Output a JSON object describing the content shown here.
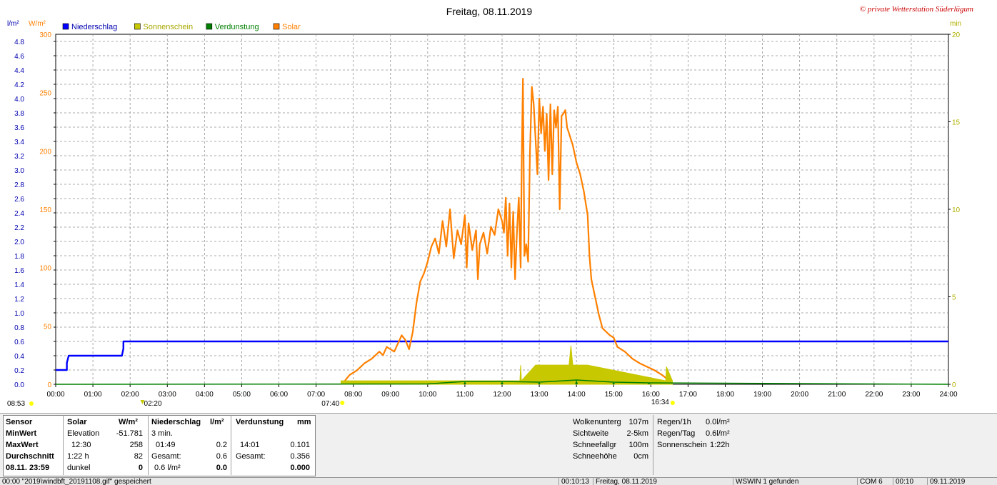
{
  "title": "Freitag, 08.11.2019",
  "copyright": "© private Wetterstation Süderlügum",
  "axes": {
    "left_unit_rain": "l/m²",
    "left_unit_solar": "W/m²",
    "right_unit": "min",
    "rain_ticks": [
      "0.0",
      "0.2",
      "0.4",
      "0.6",
      "0.8",
      "1.0",
      "1.2",
      "1.4",
      "1.6",
      "1.8",
      "2.0",
      "2.2",
      "2.4",
      "2.6",
      "2.8",
      "3.0",
      "3.2",
      "3.4",
      "3.6",
      "3.8",
      "4.0",
      "4.2",
      "4.4",
      "4.6",
      "4.8"
    ],
    "solar_ticks": [
      "0",
      "50",
      "100",
      "150",
      "200",
      "250",
      "300"
    ],
    "min_ticks": [
      "0",
      "5",
      "10",
      "15",
      "20"
    ],
    "time_ticks": [
      "00:00",
      "01:00",
      "02:00",
      "03:00",
      "04:00",
      "05:00",
      "06:00",
      "07:00",
      "08:00",
      "09:00",
      "10:00",
      "11:00",
      "12:00",
      "13:00",
      "14:00",
      "15:00",
      "16:00",
      "17:00",
      "18:00",
      "19:00",
      "20:00",
      "21:00",
      "22:00",
      "23:00",
      "24:00"
    ]
  },
  "markers": {
    "sunrise": "07:40",
    "sunset": "16:34",
    "daylength": "08:53",
    "moon": "02:20"
  },
  "legend": [
    {
      "label": "Niederschlag",
      "color": "#0000ff"
    },
    {
      "label": "Sonnenschein",
      "color": "#c8c800"
    },
    {
      "label": "Verdunstung",
      "color": "#008000"
    },
    {
      "label": "Solar",
      "color": "#ff8000"
    }
  ],
  "chart_data": {
    "type": "line",
    "title": "Freitag, 08.11.2019",
    "x_unit": "hours",
    "xlim": [
      0,
      24
    ],
    "series": [
      {
        "name": "Niederschlag",
        "axis": "l/m²",
        "ylim": [
          0,
          4.9
        ],
        "color": "#0000ff",
        "x": [
          0,
          0.3,
          0.3,
          0.35,
          1.78,
          1.82,
          1.82,
          24
        ],
        "y": [
          0.2,
          0.2,
          0.3,
          0.4,
          0.4,
          0.5,
          0.6,
          0.6
        ]
      },
      {
        "name": "Solar",
        "axis": "W/m²",
        "ylim": [
          0,
          300
        ],
        "color": "#ff8000",
        "x": [
          7.75,
          7.9,
          8.1,
          8.3,
          8.5,
          8.7,
          8.8,
          8.9,
          9.0,
          9.1,
          9.2,
          9.3,
          9.4,
          9.5,
          9.6,
          9.7,
          9.8,
          9.9,
          10.0,
          10.1,
          10.2,
          10.3,
          10.4,
          10.5,
          10.6,
          10.7,
          10.8,
          10.9,
          11.0,
          11.05,
          11.1,
          11.2,
          11.3,
          11.35,
          11.4,
          11.5,
          11.6,
          11.7,
          11.8,
          11.9,
          12.0,
          12.05,
          12.1,
          12.15,
          12.2,
          12.25,
          12.3,
          12.35,
          12.4,
          12.45,
          12.5,
          12.53,
          12.56,
          12.6,
          12.65,
          12.7,
          12.75,
          12.8,
          12.85,
          12.9,
          12.95,
          13.0,
          13.05,
          13.1,
          13.15,
          13.2,
          13.25,
          13.3,
          13.35,
          13.4,
          13.45,
          13.5,
          13.55,
          13.6,
          13.65,
          13.7,
          13.75,
          13.8,
          13.9,
          14.0,
          14.1,
          14.2,
          14.3,
          14.35,
          14.4,
          14.5,
          14.6,
          14.7,
          14.8,
          14.9,
          15.0,
          15.1,
          15.3,
          15.5,
          15.7,
          15.9,
          16.1,
          16.3,
          16.5,
          16.58
        ],
        "y": [
          2,
          8,
          12,
          18,
          22,
          28,
          25,
          32,
          30,
          28,
          35,
          42,
          38,
          30,
          45,
          70,
          88,
          95,
          105,
          118,
          125,
          112,
          140,
          118,
          150,
          108,
          132,
          120,
          145,
          100,
          138,
          115,
          132,
          90,
          120,
          130,
          112,
          135,
          128,
          150,
          140,
          130,
          160,
          110,
          155,
          100,
          148,
          90,
          130,
          160,
          100,
          195,
          262,
          110,
          120,
          105,
          200,
          255,
          240,
          210,
          180,
          245,
          215,
          238,
          200,
          232,
          175,
          240,
          180,
          235,
          220,
          238,
          150,
          230,
          232,
          235,
          220,
          215,
          205,
          190,
          180,
          165,
          145,
          110,
          90,
          75,
          60,
          48,
          45,
          42,
          40,
          32,
          28,
          22,
          18,
          15,
          12,
          8,
          3,
          0
        ]
      },
      {
        "name": "Sonnenschein",
        "axis": "min",
        "ylim": [
          0,
          20
        ],
        "color": "#c8c800",
        "x": [
          7.67,
          12.48,
          12.5,
          12.52,
          12.9,
          13.0,
          13.5,
          13.8,
          13.85,
          13.9,
          14.3,
          16.4,
          16.42,
          16.58
        ],
        "y": [
          0.2,
          0.2,
          1.1,
          0.2,
          1.1,
          1.1,
          1.1,
          1.1,
          2.2,
          1.1,
          1.1,
          0.2,
          1.0,
          0.2
        ]
      },
      {
        "name": "Verdunstung",
        "axis": "l/m²",
        "ylim": [
          0,
          4.9
        ],
        "color": "#008000",
        "x": [
          0,
          10.0,
          11.0,
          12.0,
          13.0,
          14.0,
          15.0,
          15.95,
          24
        ],
        "y": [
          0,
          0.005,
          0.04,
          0.04,
          0.03,
          0.06,
          0.03,
          0.02,
          0
        ]
      }
    ],
    "grid": true,
    "legend_position": "top-left"
  },
  "stats": {
    "sensor_header": "Sensor",
    "min_label": "MinWert",
    "max_label": "MaxWert",
    "avg_label": "Durchschnitt",
    "date_label": "08.11. 23:59",
    "solar": {
      "header": "Solar",
      "unit": "W/m²",
      "min_l": "Elevation",
      "min_v": "-51.781",
      "max_l": "12:30",
      "max_v": "258",
      "avg_l": "1:22 h",
      "avg_v": "82",
      "last_l": "dunkel",
      "last_v": "0"
    },
    "rain": {
      "header": "Niederschlag",
      "unit": "l/m²",
      "min_l": "3 min.",
      "max_l": "01:49",
      "max_v": "0.2",
      "avg_l": "Gesamt:",
      "avg_v": "0.6",
      "last_l": "0.6 l/m²",
      "last_v": "0.0"
    },
    "evap": {
      "header": "Verdunstung",
      "unit": "mm",
      "max_l": "14:01",
      "max_v": "0.101",
      "avg_l": "Gesamt:",
      "avg_v": "0.356",
      "last_v": "0.000"
    },
    "extra": [
      {
        "label": "Wolkenunterg",
        "value": "107m"
      },
      {
        "label": "Sichtweite",
        "value": "2-5km"
      },
      {
        "label": "Schneefallgr",
        "value": "100m"
      },
      {
        "label": "Schneehöhe",
        "value": "0cm"
      }
    ],
    "extra2": [
      {
        "label": "Regen/1h",
        "value": "0.0l/m²"
      },
      {
        "label": "Regen/Tag",
        "value": "0.6l/m²"
      },
      {
        "label": "Sonnenschein",
        "value": "1:22h"
      }
    ]
  },
  "statusbar": {
    "left": "00:00 \"2019\\windbft_20191108.gif\" gespeichert",
    "time1": "00:10:13",
    "day": "Freitag, 08.11.2019",
    "info": "WSWIN 1 gefunden",
    "com": "COM 6",
    "time2": "00:10",
    "date": "09.11.2019"
  }
}
